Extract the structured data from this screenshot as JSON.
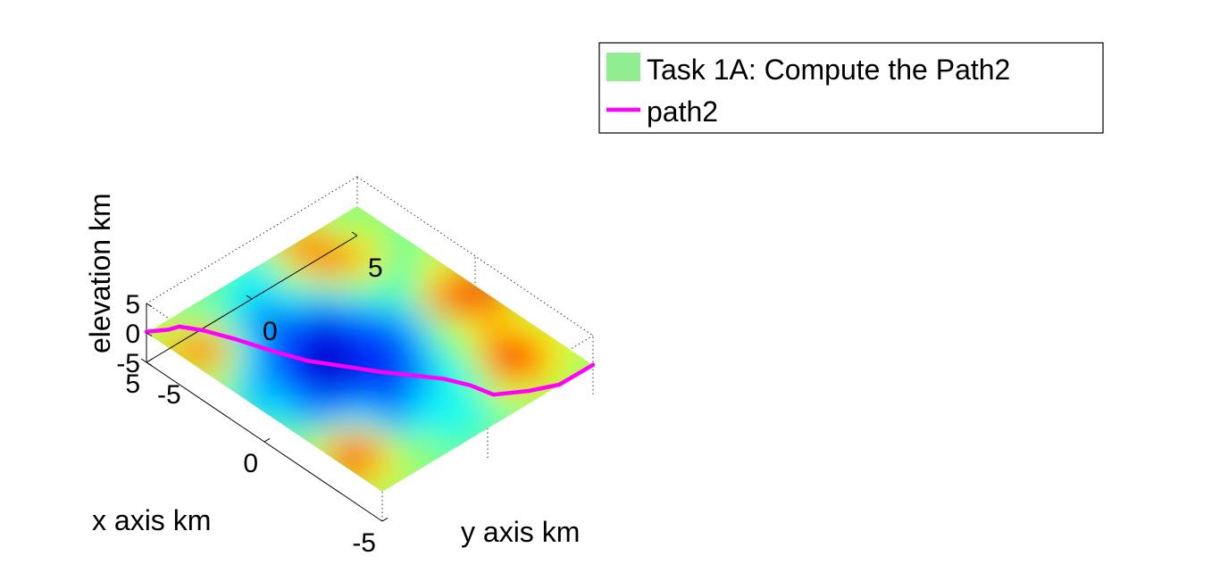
{
  "chart_data": {
    "type": "surface3d",
    "view": "3d",
    "colormap": "jet",
    "x_axis": {
      "label": "x axis km",
      "ticks": [
        "-5",
        "0",
        "5"
      ],
      "range": [
        -5,
        5
      ]
    },
    "y_axis": {
      "label": "y axis km",
      "ticks": [
        "-5",
        "0",
        "5"
      ],
      "range": [
        -5,
        5
      ]
    },
    "z_axis": {
      "label": "elevation km",
      "ticks": [
        "-5",
        "0",
        "5"
      ],
      "range": [
        -5,
        5
      ]
    },
    "legend": {
      "placement": "top-right",
      "entries": [
        {
          "label": "Task 1A: Compute the Path2",
          "kind": "patch",
          "color": "#90ee90"
        },
        {
          "label": "path2",
          "kind": "line",
          "color": "#ff00ff"
        }
      ]
    },
    "surface_features": [
      {
        "kind": "depression",
        "x": 0.6,
        "y": -1.0,
        "level": "low"
      },
      {
        "kind": "peak",
        "x": 3.5,
        "y": -4.0,
        "level": "high"
      },
      {
        "kind": "peak",
        "x": -3.0,
        "y": -4.0,
        "level": "high"
      },
      {
        "kind": "peak",
        "x": 0.0,
        "y": 4.5,
        "level": "high"
      },
      {
        "kind": "peak",
        "x": -3.0,
        "y": 3.5,
        "level": "high"
      },
      {
        "kind": "peak",
        "x": 4.0,
        "y": 2.5,
        "level": "high"
      }
    ],
    "series": [
      {
        "name": "path2",
        "color": "#ff00ff",
        "points": [
          {
            "x": 5.0,
            "y": -5.0
          },
          {
            "x": 4.6,
            "y": -4.4
          },
          {
            "x": 4.5,
            "y": -4.0
          },
          {
            "x": 3.8,
            "y": -3.6
          },
          {
            "x": 3.0,
            "y": -3.0
          },
          {
            "x": 2.0,
            "y": -2.4
          },
          {
            "x": 1.0,
            "y": -1.8
          },
          {
            "x": 0.0,
            "y": -1.0
          },
          {
            "x": -0.8,
            "y": -0.4
          },
          {
            "x": -1.6,
            "y": 0.2
          },
          {
            "x": -2.4,
            "y": 0.8
          },
          {
            "x": -3.2,
            "y": 1.2
          },
          {
            "x": -4.0,
            "y": 1.4
          },
          {
            "x": -4.6,
            "y": 2.4
          },
          {
            "x": -5.0,
            "y": 3.4
          },
          {
            "x": -5.0,
            "y": 5.0
          }
        ]
      }
    ]
  }
}
